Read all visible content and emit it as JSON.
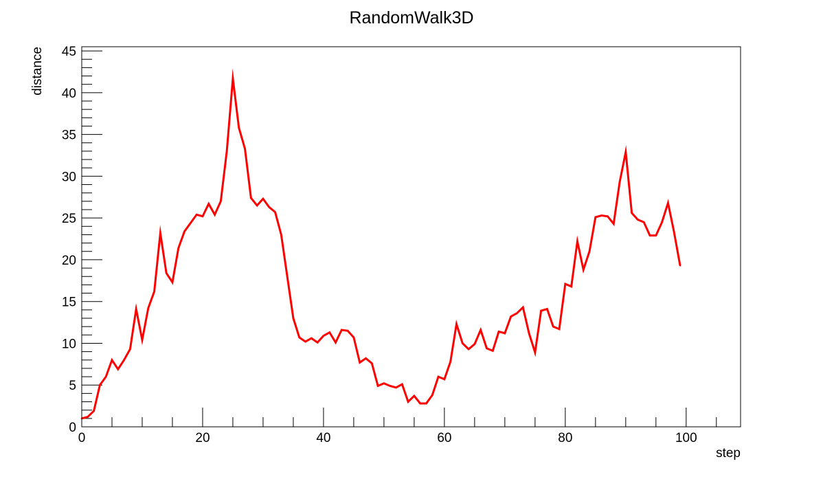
{
  "chart_data": {
    "type": "line",
    "title": "RandomWalk3D",
    "xlabel": "step",
    "ylabel": "distance",
    "xlim": [
      0,
      109
    ],
    "ylim": [
      0,
      45.5
    ],
    "x_ticks": [
      0,
      20,
      40,
      60,
      80,
      100
    ],
    "x_tick_labels": [
      "0",
      "20",
      "40",
      "60",
      "80",
      "100"
    ],
    "y_ticks": [
      0,
      5,
      10,
      15,
      20,
      25,
      30,
      35,
      40,
      45
    ],
    "y_tick_labels": [
      "0",
      "5",
      "10",
      "15",
      "20",
      "25",
      "30",
      "35",
      "40",
      "45"
    ],
    "x_minor_step": 5,
    "y_minor_step": 1,
    "grid": false,
    "legend": "none",
    "frame_color": "#000000",
    "series": [
      {
        "color": "#ff0000",
        "x": [
          0,
          1,
          2,
          3,
          4,
          5,
          6,
          7,
          8,
          9,
          10,
          11,
          12,
          13,
          14,
          15,
          16,
          17,
          18,
          19,
          20,
          21,
          22,
          23,
          24,
          25,
          26,
          27,
          28,
          29,
          30,
          31,
          32,
          33,
          34,
          35,
          36,
          37,
          38,
          39,
          40,
          41,
          42,
          43,
          44,
          45,
          46,
          47,
          48,
          49,
          50,
          51,
          52,
          53,
          54,
          55,
          56,
          57,
          58,
          59,
          60,
          61,
          62,
          63,
          64,
          65,
          66,
          67,
          68,
          69,
          70,
          71,
          72,
          73,
          74,
          75,
          76,
          77,
          78,
          79,
          80,
          81,
          82,
          83,
          84,
          85,
          86,
          87,
          88,
          89,
          90,
          91,
          92,
          93,
          94,
          95,
          96,
          97,
          98,
          99
        ],
        "values": [
          1.0,
          1.2,
          1.9,
          5.0,
          6.0,
          8.0,
          6.9,
          8.0,
          9.3,
          14.1,
          10.4,
          14.2,
          16.2,
          23.2,
          18.4,
          17.3,
          21.4,
          23.4,
          24.4,
          25.4,
          25.2,
          26.7,
          25.4,
          27.0,
          33.0,
          41.7,
          35.8,
          33.3,
          27.4,
          26.5,
          27.3,
          26.3,
          25.7,
          23.0,
          18.0,
          13.0,
          10.7,
          10.2,
          10.6,
          10.1,
          10.9,
          11.3,
          10.1,
          11.6,
          11.5,
          10.7,
          7.7,
          8.2,
          7.6,
          4.9,
          5.2,
          4.9,
          4.7,
          5.1,
          3.0,
          3.7,
          2.8,
          2.8,
          3.8,
          6.0,
          5.7,
          7.8,
          12.3,
          10.0,
          9.3,
          9.9,
          11.6,
          9.4,
          9.1,
          11.4,
          11.2,
          13.2,
          13.6,
          14.3,
          11.2,
          8.9,
          13.9,
          14.1,
          12.0,
          11.7,
          17.1,
          16.8,
          22.2,
          18.8,
          21.0,
          25.1,
          25.3,
          25.2,
          24.3,
          29.3,
          32.9,
          25.6,
          24.8,
          24.5,
          22.9,
          22.9,
          24.5,
          26.8,
          23.3,
          19.3
        ]
      }
    ]
  }
}
